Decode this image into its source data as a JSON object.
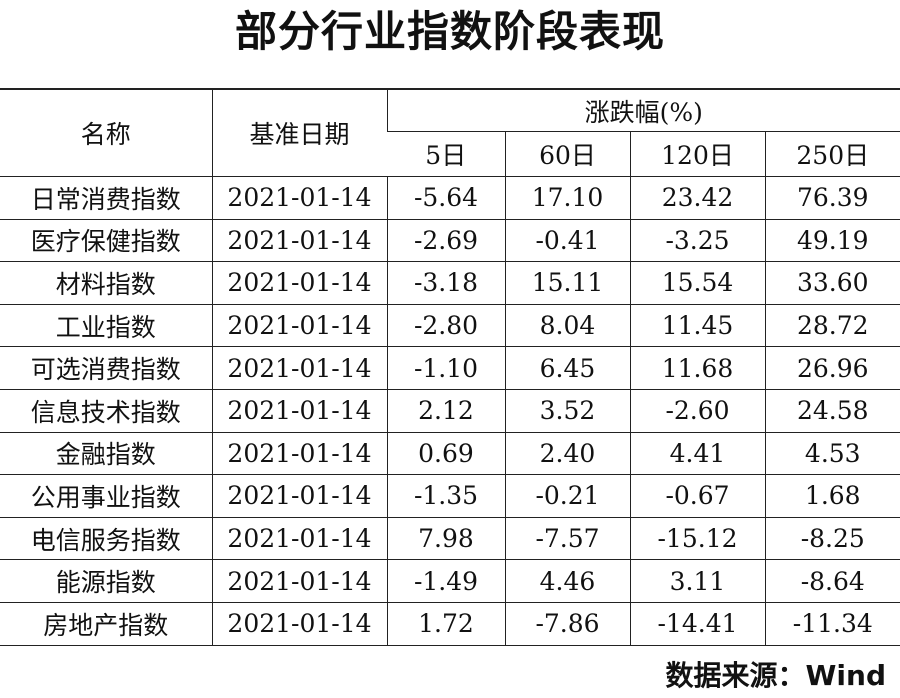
{
  "title": "部分行业指数阶段表现",
  "table": {
    "header": [
      "名称",
      "基准日期",
      "涨跌幅(%)"
    ],
    "subheader": [
      "5日",
      "60日",
      "120日",
      "250日"
    ],
    "rows": [
      [
        "日常消费指数",
        "2021-01-14",
        "-5.64",
        "17.10",
        "23.42",
        "76.39"
      ],
      [
        "医疗保健指数",
        "2021-01-14",
        "-2.69",
        "-0.41",
        "-3.25",
        "49.19"
      ],
      [
        "材料指数",
        "2021-01-14",
        "-3.18",
        "15.11",
        "15.54",
        "33.60"
      ],
      [
        "工业指数",
        "2021-01-14",
        "-2.80",
        "8.04",
        "11.45",
        "28.72"
      ],
      [
        "可选消费指数",
        "2021-01-14",
        "-1.10",
        "6.45",
        "11.68",
        "26.96"
      ],
      [
        "信息技术指数",
        "2021-01-14",
        "2.12",
        "3.52",
        "-2.60",
        "24.58"
      ],
      [
        "金融指数",
        "2021-01-14",
        "0.69",
        "2.40",
        "4.41",
        "4.53"
      ],
      [
        "公用事业指数",
        "2021-01-14",
        "-1.35",
        "-0.21",
        "-0.67",
        "1.68"
      ],
      [
        "电信服务指数",
        "2021-01-14",
        "7.98",
        "-7.57",
        "-15.12",
        "-8.25"
      ],
      [
        "能源指数",
        "2021-01-14",
        "-1.49",
        "4.46",
        "3.11",
        "-8.64"
      ],
      [
        "房地产指数",
        "2021-01-14",
        "1.72",
        "-7.86",
        "-14.41",
        "-11.34"
      ]
    ]
  },
  "source": "数据来源：Wind"
}
